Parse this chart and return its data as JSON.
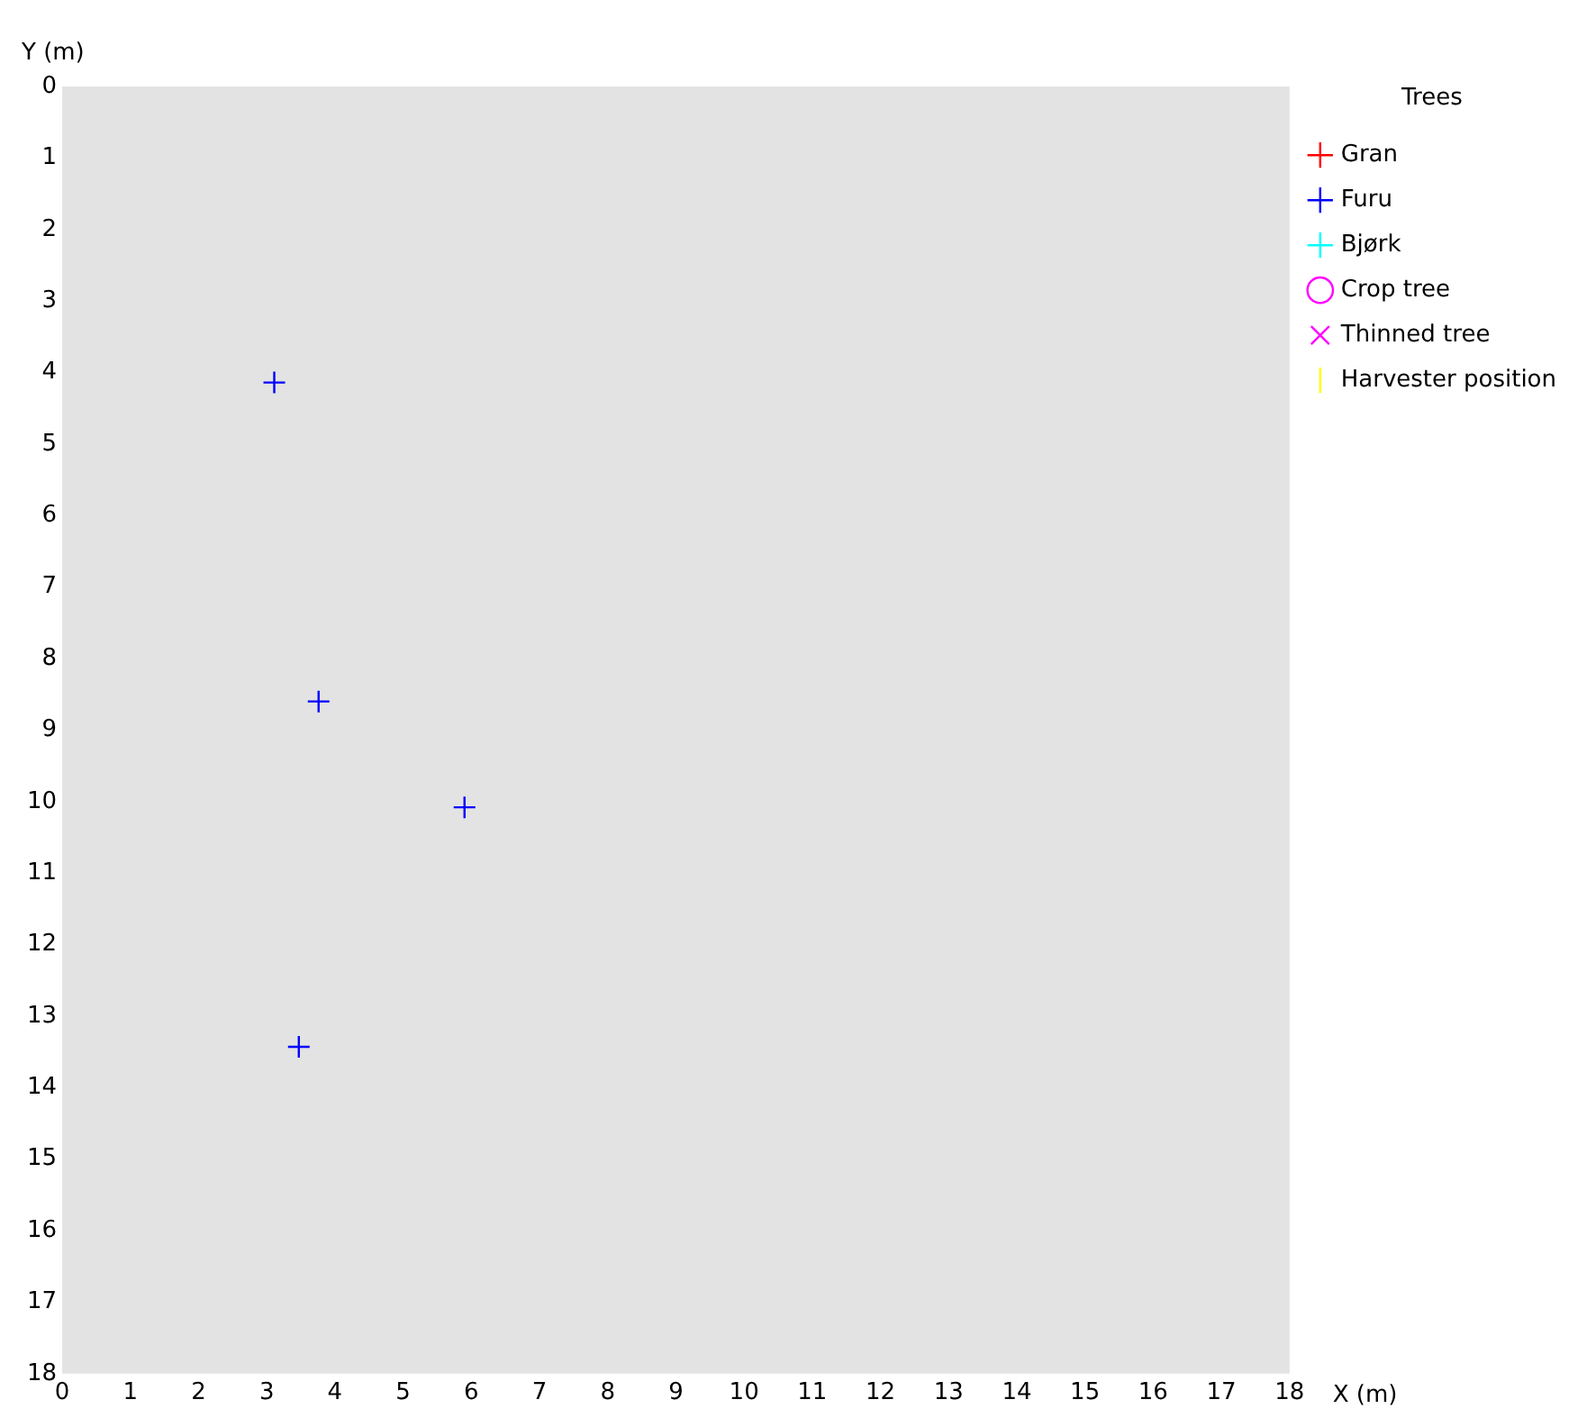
{
  "chart_data": {
    "type": "scatter",
    "xlabel": "X (m)",
    "ylabel": "Y (m)",
    "legend_title": "Trees",
    "legend": "right",
    "grid": false,
    "xlim": [
      0,
      18
    ],
    "xticks": [
      0,
      1,
      2,
      3,
      4,
      5,
      6,
      7,
      8,
      9,
      10,
      11,
      12,
      13,
      14,
      15,
      16,
      17,
      18
    ],
    "ylim": [
      18,
      0
    ],
    "yticks": [
      0,
      1,
      2,
      3,
      4,
      5,
      6,
      7,
      8,
      9,
      10,
      11,
      12,
      13,
      14,
      15,
      16,
      17,
      18
    ],
    "series": [
      {
        "name": "Gran",
        "color": "#ff0000",
        "marker": "cross"
      },
      {
        "name": "Furu",
        "color": "#0000ff",
        "marker": "cross",
        "x": [
          3.11,
          3.76,
          5.9,
          3.47
        ],
        "values": [
          4.14,
          8.6,
          10.08,
          13.43
        ]
      },
      {
        "name": "Bjørk",
        "color": "#00ffff",
        "marker": "cross"
      },
      {
        "name": "Crop tree",
        "color": "#ff00ff",
        "marker": "circle"
      },
      {
        "name": "Thinned tree",
        "color": "#ff00ff",
        "marker": "x"
      },
      {
        "name": "Harvester position",
        "color": "#ffff00",
        "marker": "line"
      }
    ]
  }
}
